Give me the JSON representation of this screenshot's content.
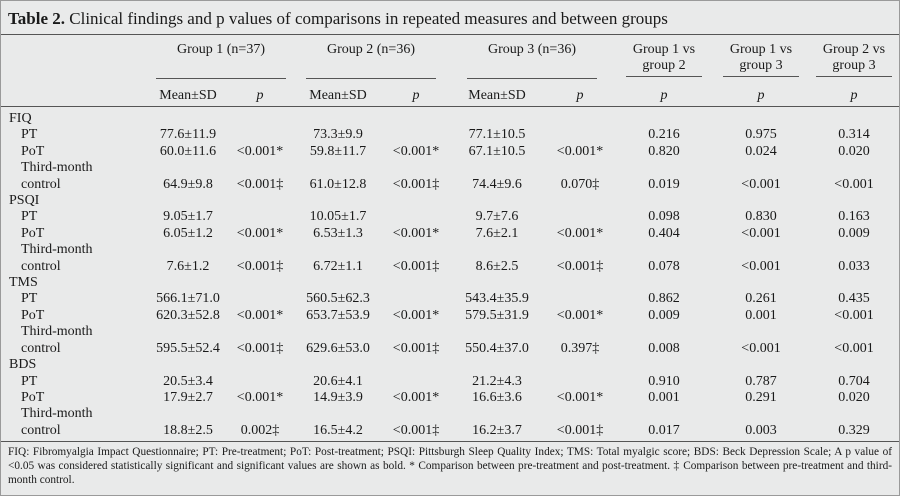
{
  "title": {
    "label": "Table 2.",
    "text": "Clinical findings and p values of comparisons in repeated measures and between groups"
  },
  "columns": {
    "groups": [
      "Group 1 (n=37)",
      "Group 2 (n=36)",
      "Group 3 (n=36)",
      "Group 1 vs group 2",
      "Group 1 vs group 3",
      "Group 2 vs group 3"
    ],
    "sub": [
      "Mean±SD",
      "p",
      "Mean±SD",
      "p",
      "Mean±SD",
      "p",
      "p",
      "p",
      "p"
    ]
  },
  "sections": [
    {
      "name": "FIQ",
      "rows": [
        {
          "label": [
            "PT"
          ],
          "cells": [
            "77.6±11.9",
            null,
            "73.3±9.9",
            null,
            "77.1±10.5",
            null,
            "0.216",
            "0.975",
            "0.314"
          ]
        },
        {
          "label": [
            "PoT"
          ],
          "cells": [
            "60.0±11.6",
            "<0.001*",
            "59.8±11.7",
            "<0.001*",
            "67.1±10.5",
            "<0.001*",
            "0.820",
            "0.024",
            "0.020"
          ]
        },
        {
          "label": [
            "Third-month",
            "control"
          ],
          "cells": [
            "64.9±9.8",
            "<0.001‡",
            "61.0±12.8",
            "<0.001‡",
            "74.4±9.6",
            "0.070‡",
            "0.019",
            "<0.001",
            "<0.001"
          ]
        }
      ]
    },
    {
      "name": "PSQI",
      "rows": [
        {
          "label": [
            "PT"
          ],
          "cells": [
            "9.05±1.7",
            null,
            "10.05±1.7",
            null,
            "9.7±7.6",
            null,
            "0.098",
            "0.830",
            "0.163"
          ]
        },
        {
          "label": [
            "PoT"
          ],
          "cells": [
            "6.05±1.2",
            "<0.001*",
            "6.53±1.3",
            "<0.001*",
            "7.6±2.1",
            "<0.001*",
            "0.404",
            "<0.001",
            "0.009"
          ]
        },
        {
          "label": [
            "Third-month",
            "control"
          ],
          "cells": [
            "7.6±1.2",
            "<0.001‡",
            "6.72±1.1",
            "<0.001‡",
            "8.6±2.5",
            "<0.001‡",
            "0.078",
            "<0.001",
            "0.033"
          ]
        }
      ]
    },
    {
      "name": "TMS",
      "rows": [
        {
          "label": [
            "PT"
          ],
          "cells": [
            "566.1±71.0",
            null,
            "560.5±62.3",
            null,
            "543.4±35.9",
            null,
            "0.862",
            "0.261",
            "0.435"
          ]
        },
        {
          "label": [
            "PoT"
          ],
          "cells": [
            "620.3±52.8",
            "<0.001*",
            "653.7±53.9",
            "<0.001*",
            "579.5±31.9",
            "<0.001*",
            "0.009",
            "0.001",
            "<0.001"
          ]
        },
        {
          "label": [
            "Third-month",
            "control"
          ],
          "cells": [
            "595.5±52.4",
            "<0.001‡",
            "629.6±53.0",
            "<0.001‡",
            "550.4±37.0",
            "0.397‡",
            "0.008",
            "<0.001",
            "<0.001"
          ]
        }
      ]
    },
    {
      "name": "BDS",
      "rows": [
        {
          "label": [
            "PT"
          ],
          "cells": [
            "20.5±3.4",
            null,
            "20.6±4.1",
            null,
            "21.2±4.3",
            null,
            "0.910",
            "0.787",
            "0.704"
          ]
        },
        {
          "label": [
            "PoT"
          ],
          "cells": [
            "17.9±2.7",
            "<0.001*",
            "14.9±3.9",
            "<0.001*",
            "16.6±3.6",
            "<0.001*",
            "0.001",
            "0.291",
            "0.020"
          ]
        },
        {
          "label": [
            "Third-month",
            "control"
          ],
          "cells": [
            "18.8±2.5",
            "0.002‡",
            "16.5±4.2",
            "<0.001‡",
            "16.2±3.7",
            "<0.001‡",
            "0.017",
            "0.003",
            "0.329"
          ]
        }
      ]
    }
  ],
  "footnote": "FIQ: Fibromyalgia Impact Questionnaire; PT: Pre-treatment; PoT: Post-treatment; PSQI: Pittsburgh Sleep Quality Index; TMS: Total myalgic score; BDS: Beck Depression Scale; A p value of <0.05 was considered statistically significant and significant values are shown as bold. * Comparison between pre-treatment and post-treatment. ‡ Comparison between pre-treatment and third-month control."
}
